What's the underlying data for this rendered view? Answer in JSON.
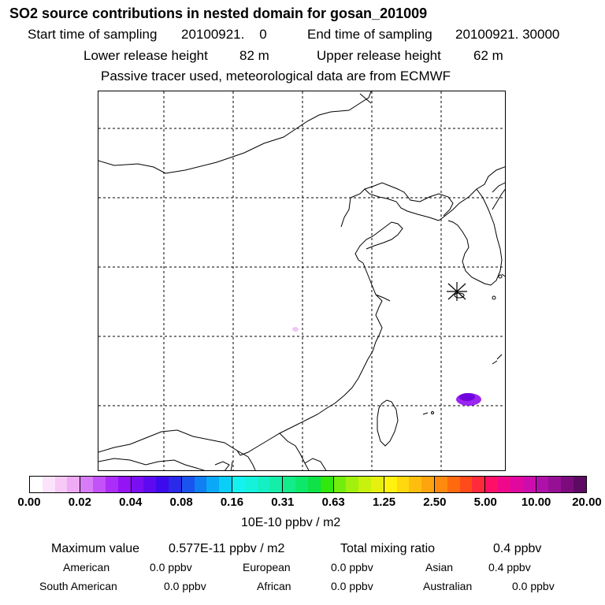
{
  "header": {
    "title": "SO2 source contributions in nested domain for gosan_201009",
    "start_label": "Start time of sampling",
    "start_value": "20100921.    0",
    "end_label": "End time of sampling",
    "end_value": "20100921. 30000",
    "lower_label": "Lower release height",
    "lower_value": "82 m",
    "upper_label": "Upper release height",
    "upper_value": "62 m",
    "note": "Passive tracer used, meteorological data are from ECMWF"
  },
  "map": {
    "receptor_marker": "receptor-star-marker",
    "plumes": [
      {
        "name": "plume-east-china-sea",
        "color": "#8a00f0",
        "level_ppbv_m2": 0.05
      },
      {
        "name": "plume-inland-china",
        "color": "#f0c8f5",
        "level_ppbv_m2": 0.01
      }
    ],
    "colors": {
      "coast": "#000000",
      "grid": "#000000",
      "land": "#ffffff"
    }
  },
  "colorbar": {
    "ticks": [
      "0.00",
      "0.02",
      "0.04",
      "0.08",
      "0.16",
      "0.31",
      "0.63",
      "1.25",
      "2.50",
      "5.00",
      "10.00",
      "20.00"
    ],
    "units": "10E-10 ppbv / m2",
    "colors": [
      "#ffffff",
      "#fbe3fb",
      "#f6c9f6",
      "#eeaaf3",
      "#d77cf6",
      "#c352f8",
      "#ad2df8",
      "#9414f5",
      "#7a0ff2",
      "#5e0af0",
      "#3d0aee",
      "#2a2ae8",
      "#1a54ee",
      "#0f7ff2",
      "#0aa8f6",
      "#0acef8",
      "#14f2f0",
      "#14f2dc",
      "#14f0c4",
      "#14eea8",
      "#14ec8a",
      "#0ee86a",
      "#0ee246",
      "#30e80e",
      "#72ee0e",
      "#a2f00e",
      "#c8f20e",
      "#e6f00e",
      "#fff20e",
      "#ffd80e",
      "#ffbe0e",
      "#ffa40e",
      "#ff8a0e",
      "#ff6a0e",
      "#ff4a1a",
      "#ff2a3a",
      "#ff1066",
      "#f0088c",
      "#e0089e",
      "#cc0cac",
      "#b010aa",
      "#961096",
      "#7c0c7e",
      "#5e0a62"
    ]
  },
  "stats": {
    "max_label": "Maximum value",
    "max_value": "0.577E-11 ppbv / m2",
    "total_label": "Total mixing ratio",
    "total_value": "0.4 ppbv",
    "sources": [
      {
        "name": "American",
        "value": "0.0 ppbv"
      },
      {
        "name": "European",
        "value": "0.0 ppbv"
      },
      {
        "name": "Asian",
        "value": "0.4 ppbv"
      },
      {
        "name": "South American",
        "value": "0.0 ppbv"
      },
      {
        "name": "African",
        "value": "0.0 ppbv"
      },
      {
        "name": "Australian",
        "value": "0.0 ppbv"
      }
    ]
  }
}
